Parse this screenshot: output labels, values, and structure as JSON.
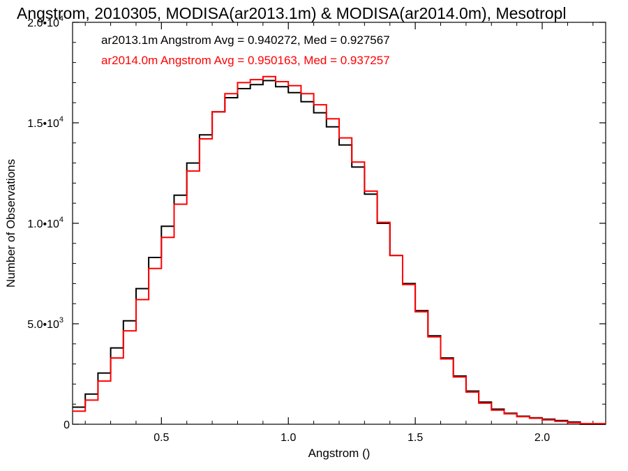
{
  "chart_data": {
    "type": "line",
    "step": true,
    "title": "Angstrom, 2010305, MODISA(ar2013.1m) & MODISA(ar2014.0m), Mesotropl",
    "xlabel": "Angstrom ()",
    "ylabel": "Number of Observations",
    "xlim": [
      0.15,
      2.25
    ],
    "ylim": [
      0,
      20000
    ],
    "x_ticks": [
      {
        "value": 0.5,
        "label": "0.5"
      },
      {
        "value": 1.0,
        "label": "1.0"
      },
      {
        "value": 1.5,
        "label": "1.5"
      },
      {
        "value": 2.0,
        "label": "2.0"
      }
    ],
    "y_ticks": [
      {
        "value": 0,
        "label": "0"
      },
      {
        "value": 5000,
        "label": "5.0•10",
        "exp": "3"
      },
      {
        "value": 10000,
        "label": "1.0•10",
        "exp": "4"
      },
      {
        "value": 15000,
        "label": "1.5•10",
        "exp": "4"
      },
      {
        "value": 20000,
        "label": "2.0•10",
        "exp": "4"
      }
    ],
    "annotations": [
      {
        "text": "ar2013.1m Angstrom Avg = 0.940272, Med = 0.927567",
        "color": "#000000"
      },
      {
        "text": "ar2014.0m Angstrom Avg = 0.950163, Med = 0.937257",
        "color": "#ff0000"
      }
    ],
    "series": [
      {
        "color": "#000000",
        "x": [
          0.15,
          0.2,
          0.25,
          0.3,
          0.35,
          0.4,
          0.45,
          0.5,
          0.55,
          0.6,
          0.65,
          0.7,
          0.75,
          0.8,
          0.85,
          0.9,
          0.95,
          1.0,
          1.05,
          1.1,
          1.15,
          1.2,
          1.25,
          1.3,
          1.35,
          1.4,
          1.45,
          1.5,
          1.55,
          1.6,
          1.65,
          1.7,
          1.75,
          1.8,
          1.85,
          1.9,
          1.95,
          2.0,
          2.05,
          2.1,
          2.15,
          2.25
        ],
        "y": [
          850,
          1500,
          2550,
          3800,
          5150,
          6750,
          8300,
          9850,
          11400,
          13000,
          14400,
          15550,
          16250,
          16700,
          16900,
          17100,
          16800,
          16500,
          16050,
          15500,
          14800,
          13900,
          12800,
          11450,
          10000,
          8400,
          7000,
          5650,
          4400,
          3300,
          2400,
          1650,
          1100,
          750,
          550,
          400,
          320,
          250,
          180,
          110,
          0,
          0
        ]
      },
      {
        "color": "#ff0000",
        "x": [
          0.15,
          0.2,
          0.25,
          0.3,
          0.35,
          0.4,
          0.45,
          0.5,
          0.55,
          0.6,
          0.65,
          0.7,
          0.75,
          0.8,
          0.85,
          0.9,
          0.95,
          1.0,
          1.05,
          1.1,
          1.15,
          1.2,
          1.25,
          1.3,
          1.35,
          1.4,
          1.45,
          1.5,
          1.55,
          1.6,
          1.65,
          1.7,
          1.75,
          1.8,
          1.85,
          1.9,
          1.95,
          2.0,
          2.05,
          2.1,
          2.15,
          2.25
        ],
        "y": [
          650,
          1200,
          2150,
          3300,
          4650,
          6200,
          7750,
          9300,
          10950,
          12600,
          14200,
          15550,
          16450,
          17000,
          17150,
          17300,
          17050,
          16850,
          16450,
          15900,
          15200,
          14250,
          13050,
          11600,
          10050,
          8400,
          6950,
          5600,
          4350,
          3250,
          2350,
          1600,
          1050,
          700,
          520,
          380,
          300,
          220,
          150,
          80,
          30,
          30
        ]
      }
    ]
  }
}
